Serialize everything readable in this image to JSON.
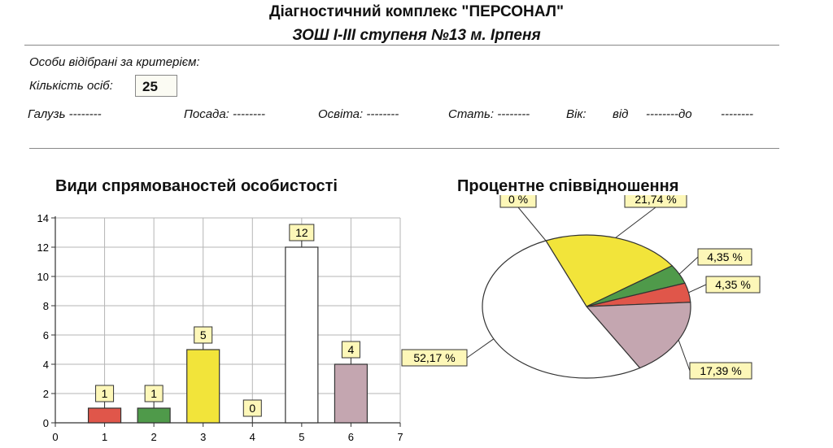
{
  "header": {
    "title": "Діагностичний комплекс    \"ПЕРСОНАЛ\"",
    "subtitle": "ЗОШ І-ІІІ ступеня №13 м. Ірпеня"
  },
  "filters": {
    "selected_label": "Особи відібрані за критерієм:",
    "count_label": "Кількість осіб:",
    "count_value": "25",
    "industry": "Галузь --------",
    "position": "Посада: --------",
    "education": "Освіта: --------",
    "gender": "Стать: --------",
    "age_label": "Вік:",
    "age_from": "від",
    "age_mid": "--------до",
    "age_to": "--------"
  },
  "chart_data": [
    {
      "type": "bar",
      "title": "Види спрямованостей особистості",
      "x": [
        1,
        2,
        3,
        4,
        5,
        6
      ],
      "values": [
        1,
        1,
        5,
        0,
        12,
        4
      ],
      "colors": [
        "#e0564a",
        "#4f9a4a",
        "#f2e43a",
        "#ffffff",
        "#ffffff",
        "#c4a6b0"
      ],
      "xlim": [
        0,
        7
      ],
      "ylim": [
        0,
        14
      ],
      "xticks": [
        0,
        1,
        2,
        3,
        4,
        5,
        6,
        7
      ],
      "yticks": [
        0,
        2,
        4,
        6,
        8,
        10,
        12,
        14
      ],
      "data_labels": [
        "1",
        "1",
        "5",
        "0",
        "12",
        "4"
      ],
      "grid": true
    },
    {
      "type": "pie",
      "title": "Процентне співвідношення",
      "slices": [
        {
          "label": "0 %",
          "value": 0,
          "color": "#ffffff"
        },
        {
          "label": "21,74 %",
          "value": 21.74,
          "color": "#f2e43a"
        },
        {
          "label": "4,35 %",
          "value": 4.35,
          "color": "#4f9a4a"
        },
        {
          "label": "4,35 %",
          "value": 4.35,
          "color": "#e0564a"
        },
        {
          "label": "17,39 %",
          "value": 17.39,
          "color": "#c4a6b0"
        },
        {
          "label": "52,17 %",
          "value": 52.17,
          "color": "#ffffff"
        }
      ]
    }
  ]
}
